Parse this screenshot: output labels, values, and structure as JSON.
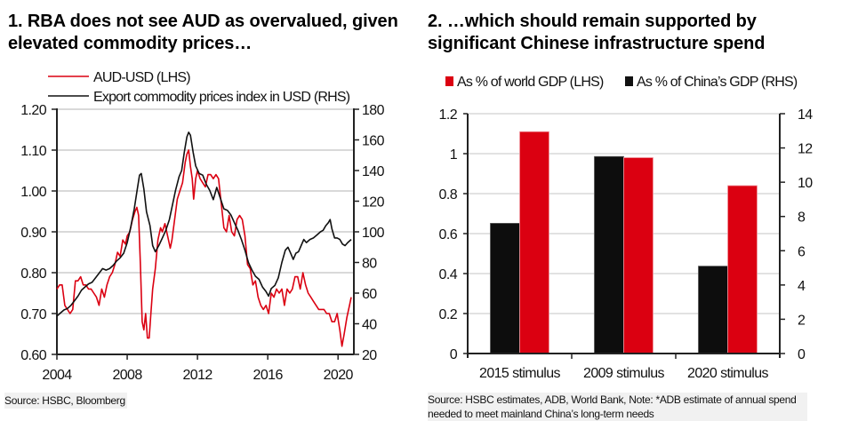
{
  "chart_data": [
    {
      "type": "line",
      "title": "1. RBA does not see AUD as overvalued, given elevated commodity prices…",
      "xlabel": "",
      "x_ticks": [
        "2004",
        "2008",
        "2012",
        "2016",
        "2020"
      ],
      "xlim": [
        2004,
        2020.9
      ],
      "y_left": {
        "label": "AUD-USD (LHS)",
        "ylim": [
          0.6,
          1.2
        ],
        "ticks": [
          "0.60",
          "0.70",
          "0.80",
          "0.90",
          "1.00",
          "1.10",
          "1.20"
        ]
      },
      "y_right": {
        "label": "Export commodity prices index in USD (RHS)",
        "ylim": [
          20,
          180
        ],
        "ticks": [
          "20",
          "40",
          "60",
          "80",
          "100",
          "120",
          "140",
          "160",
          "180"
        ]
      },
      "grid": true,
      "legend": "top-left",
      "series": [
        {
          "name": "AUD-USD (LHS)",
          "axis": "left",
          "color": "#db0011",
          "points": [
            [
              2004.0,
              0.76
            ],
            [
              2004.15,
              0.77
            ],
            [
              2004.3,
              0.77
            ],
            [
              2004.45,
              0.72
            ],
            [
              2004.6,
              0.71
            ],
            [
              2004.75,
              0.7
            ],
            [
              2004.9,
              0.71
            ],
            [
              2005.05,
              0.78
            ],
            [
              2005.2,
              0.78
            ],
            [
              2005.35,
              0.79
            ],
            [
              2005.5,
              0.77
            ],
            [
              2005.65,
              0.77
            ],
            [
              2005.8,
              0.76
            ],
            [
              2005.95,
              0.76
            ],
            [
              2006.1,
              0.75
            ],
            [
              2006.25,
              0.74
            ],
            [
              2006.4,
              0.72
            ],
            [
              2006.55,
              0.76
            ],
            [
              2006.7,
              0.74
            ],
            [
              2006.85,
              0.77
            ],
            [
              2007.0,
              0.79
            ],
            [
              2007.15,
              0.8
            ],
            [
              2007.3,
              0.82
            ],
            [
              2007.45,
              0.85
            ],
            [
              2007.6,
              0.84
            ],
            [
              2007.75,
              0.88
            ],
            [
              2007.9,
              0.87
            ],
            [
              2008.0,
              0.89
            ],
            [
              2008.15,
              0.9
            ],
            [
              2008.3,
              0.93
            ],
            [
              2008.45,
              0.95
            ],
            [
              2008.55,
              0.96
            ],
            [
              2008.65,
              0.94
            ],
            [
              2008.75,
              0.82
            ],
            [
              2008.85,
              0.68
            ],
            [
              2008.95,
              0.66
            ],
            [
              2009.05,
              0.7
            ],
            [
              2009.15,
              0.64
            ],
            [
              2009.25,
              0.64
            ],
            [
              2009.35,
              0.7
            ],
            [
              2009.45,
              0.76
            ],
            [
              2009.6,
              0.81
            ],
            [
              2009.75,
              0.88
            ],
            [
              2009.9,
              0.91
            ],
            [
              2010.0,
              0.9
            ],
            [
              2010.15,
              0.92
            ],
            [
              2010.3,
              0.89
            ],
            [
              2010.45,
              0.86
            ],
            [
              2010.55,
              0.88
            ],
            [
              2010.7,
              0.93
            ],
            [
              2010.85,
              0.98
            ],
            [
              2011.0,
              1.0
            ],
            [
              2011.15,
              1.02
            ],
            [
              2011.3,
              1.07
            ],
            [
              2011.4,
              1.09
            ],
            [
              2011.5,
              1.1
            ],
            [
              2011.6,
              1.06
            ],
            [
              2011.7,
              1.03
            ],
            [
              2011.78,
              0.98
            ],
            [
              2011.9,
              1.03
            ],
            [
              2012.0,
              1.05
            ],
            [
              2012.15,
              1.03
            ],
            [
              2012.3,
              1.02
            ],
            [
              2012.45,
              1.01
            ],
            [
              2012.6,
              1.04
            ],
            [
              2012.75,
              1.04
            ],
            [
              2012.9,
              1.03
            ],
            [
              2013.05,
              1.04
            ],
            [
              2013.2,
              1.03
            ],
            [
              2013.35,
              0.97
            ],
            [
              2013.5,
              0.91
            ],
            [
              2013.65,
              0.9
            ],
            [
              2013.8,
              0.94
            ],
            [
              2013.95,
              0.9
            ],
            [
              2014.1,
              0.89
            ],
            [
              2014.25,
              0.93
            ],
            [
              2014.4,
              0.94
            ],
            [
              2014.55,
              0.93
            ],
            [
              2014.7,
              0.89
            ],
            [
              2014.85,
              0.82
            ],
            [
              2015.0,
              0.81
            ],
            [
              2015.15,
              0.77
            ],
            [
              2015.3,
              0.78
            ],
            [
              2015.45,
              0.74
            ],
            [
              2015.6,
              0.72
            ],
            [
              2015.75,
              0.71
            ],
            [
              2015.9,
              0.72
            ],
            [
              2016.05,
              0.7
            ],
            [
              2016.2,
              0.75
            ],
            [
              2016.35,
              0.74
            ],
            [
              2016.5,
              0.76
            ],
            [
              2016.65,
              0.75
            ],
            [
              2016.8,
              0.76
            ],
            [
              2016.95,
              0.72
            ],
            [
              2017.1,
              0.76
            ],
            [
              2017.25,
              0.75
            ],
            [
              2017.4,
              0.76
            ],
            [
              2017.55,
              0.79
            ],
            [
              2017.7,
              0.79
            ],
            [
              2017.85,
              0.76
            ],
            [
              2018.0,
              0.8
            ],
            [
              2018.15,
              0.77
            ],
            [
              2018.3,
              0.75
            ],
            [
              2018.45,
              0.74
            ],
            [
              2018.6,
              0.73
            ],
            [
              2018.75,
              0.72
            ],
            [
              2018.9,
              0.71
            ],
            [
              2019.05,
              0.71
            ],
            [
              2019.2,
              0.71
            ],
            [
              2019.35,
              0.7
            ],
            [
              2019.5,
              0.7
            ],
            [
              2019.65,
              0.68
            ],
            [
              2019.8,
              0.68
            ],
            [
              2019.95,
              0.7
            ],
            [
              2020.1,
              0.66
            ],
            [
              2020.22,
              0.62
            ],
            [
              2020.35,
              0.65
            ],
            [
              2020.5,
              0.69
            ],
            [
              2020.65,
              0.72
            ],
            [
              2020.75,
              0.74
            ]
          ]
        },
        {
          "name": "Export commodity prices index in USD (RHS)",
          "axis": "right",
          "color": "#111111",
          "points": [
            [
              2004.0,
              45
            ],
            [
              2004.2,
              47
            ],
            [
              2004.4,
              49
            ],
            [
              2004.6,
              50
            ],
            [
              2004.8,
              52
            ],
            [
              2005.0,
              55
            ],
            [
              2005.2,
              58
            ],
            [
              2005.4,
              62
            ],
            [
              2005.6,
              64
            ],
            [
              2005.8,
              66
            ],
            [
              2006.0,
              67
            ],
            [
              2006.2,
              70
            ],
            [
              2006.4,
              73
            ],
            [
              2006.6,
              76
            ],
            [
              2006.8,
              75
            ],
            [
              2007.0,
              76
            ],
            [
              2007.2,
              78
            ],
            [
              2007.4,
              81
            ],
            [
              2007.6,
              83
            ],
            [
              2007.8,
              86
            ],
            [
              2008.0,
              93
            ],
            [
              2008.2,
              103
            ],
            [
              2008.4,
              115
            ],
            [
              2008.55,
              126
            ],
            [
              2008.7,
              137
            ],
            [
              2008.8,
              138
            ],
            [
              2008.95,
              128
            ],
            [
              2009.1,
              113
            ],
            [
              2009.3,
              104
            ],
            [
              2009.45,
              91
            ],
            [
              2009.6,
              87
            ],
            [
              2009.8,
              91
            ],
            [
              2010.0,
              96
            ],
            [
              2010.2,
              101
            ],
            [
              2010.4,
              108
            ],
            [
              2010.55,
              116
            ],
            [
              2010.75,
              127
            ],
            [
              2010.95,
              136
            ],
            [
              2011.1,
              140
            ],
            [
              2011.25,
              152
            ],
            [
              2011.4,
              162
            ],
            [
              2011.5,
              165
            ],
            [
              2011.6,
              163
            ],
            [
              2011.75,
              152
            ],
            [
              2011.9,
              143
            ],
            [
              2012.1,
              138
            ],
            [
              2012.3,
              137
            ],
            [
              2012.5,
              131
            ],
            [
              2012.7,
              127
            ],
            [
              2012.9,
              121
            ],
            [
              2013.1,
              129
            ],
            [
              2013.3,
              122
            ],
            [
              2013.5,
              115
            ],
            [
              2013.7,
              114
            ],
            [
              2013.9,
              111
            ],
            [
              2014.1,
              106
            ],
            [
              2014.3,
              101
            ],
            [
              2014.5,
              95
            ],
            [
              2014.7,
              88
            ],
            [
              2014.9,
              80
            ],
            [
              2015.1,
              75
            ],
            [
              2015.3,
              71
            ],
            [
              2015.5,
              69
            ],
            [
              2015.7,
              64
            ],
            [
              2015.9,
              61
            ],
            [
              2016.05,
              58
            ],
            [
              2016.2,
              63
            ],
            [
              2016.4,
              65
            ],
            [
              2016.6,
              70
            ],
            [
              2016.8,
              80
            ],
            [
              2017.0,
              88
            ],
            [
              2017.15,
              90
            ],
            [
              2017.3,
              86
            ],
            [
              2017.45,
              82
            ],
            [
              2017.6,
              86
            ],
            [
              2017.75,
              87
            ],
            [
              2017.9,
              91
            ],
            [
              2018.05,
              95
            ],
            [
              2018.2,
              93
            ],
            [
              2018.4,
              95
            ],
            [
              2018.6,
              96
            ],
            [
              2018.8,
              98
            ],
            [
              2019.0,
              100
            ],
            [
              2019.15,
              101
            ],
            [
              2019.3,
              104
            ],
            [
              2019.45,
              106
            ],
            [
              2019.55,
              108
            ],
            [
              2019.65,
              102
            ],
            [
              2019.8,
              96
            ],
            [
              2019.95,
              96
            ],
            [
              2020.1,
              95
            ],
            [
              2020.25,
              92
            ],
            [
              2020.4,
              91
            ],
            [
              2020.55,
              93
            ],
            [
              2020.75,
              95
            ]
          ]
        }
      ]
    },
    {
      "type": "bar",
      "title": "2. …which should remain supported by significant Chinese infrastructure spend",
      "categories": [
        "2015 stimulus",
        "2009 stimulus",
        "2020 stimulus"
      ],
      "y_left": {
        "label": "As % of world GDP (LHS)",
        "ylim": [
          0,
          1.2
        ],
        "ticks": [
          "0",
          "0.2",
          "0.4",
          "0.6",
          "0.8",
          "1",
          "1.2"
        ]
      },
      "y_right": {
        "label": "As % of China's GDP (RHS)",
        "ylim": [
          0,
          14
        ],
        "ticks": [
          "0",
          "2",
          "4",
          "6",
          "8",
          "10",
          "12",
          "14"
        ]
      },
      "grid": true,
      "legend": "top",
      "series": [
        {
          "name": "As % of China's GDP (RHS)",
          "axis": "right",
          "color": "#0d0d0d",
          "values": [
            7.6,
            11.5,
            5.1
          ]
        },
        {
          "name": "As % of world GDP (LHS)",
          "axis": "left",
          "color": "#db0011",
          "values": [
            1.11,
            0.98,
            0.84
          ]
        }
      ]
    }
  ],
  "chart1": {
    "title": "1. RBA does not see AUD as overvalued, given elevated commodity prices…",
    "legend": [
      "AUD-USD (LHS)",
      "Export commodity prices index in USD (RHS)"
    ],
    "source": "Source: HSBC, Bloomberg"
  },
  "chart2": {
    "title": "2. …which should remain supported by significant Chinese infrastructure spend",
    "legend": [
      "As % of world GDP (LHS)",
      "As % of China’s GDP (RHS)"
    ],
    "source": "Source: HSBC estimates, ADB, World Bank, Note: *ADB estimate of annual spend needed to meet mainland China’s long-term needs"
  }
}
